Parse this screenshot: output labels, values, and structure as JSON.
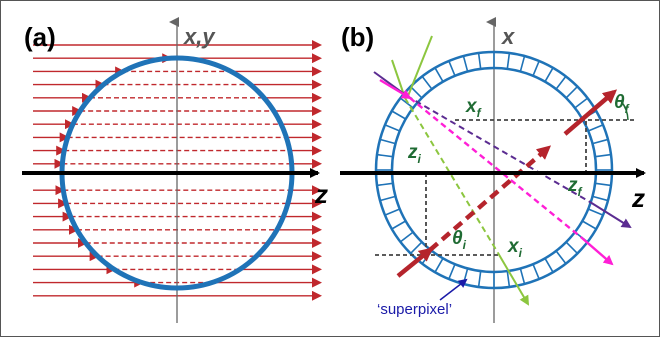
{
  "panel_a": {
    "label": "(a)",
    "vertical_axis_label": "x,y",
    "z_axis_label": "z",
    "colors": {
      "rays": "#c0282d",
      "circle": "#1f73b7",
      "axis": "#000000"
    }
  },
  "panel_b": {
    "label": "(b)",
    "vertical_axis_label": "x",
    "z_axis_label": "z",
    "labels": {
      "theta_f": "θ",
      "theta_f_sub": "f",
      "x_f": "x",
      "x_f_sub": "f",
      "z_i": "z",
      "z_i_sub": "i",
      "z_f": "z",
      "z_f_sub": "f",
      "theta_i": "θ",
      "theta_i_sub": "i",
      "x_i": "x",
      "x_i_sub": "i"
    },
    "superpixel_label": "‘superpixel’",
    "colors": {
      "ring": "#1f73b7",
      "main_ray": "#b5242c",
      "green_ray": "#8cc63f",
      "purple_ray": "#5b2c91",
      "magenta_ray": "#ff1fd6",
      "arrow_label": "#1a1aa8",
      "var_text": "#1f6b33"
    }
  }
}
